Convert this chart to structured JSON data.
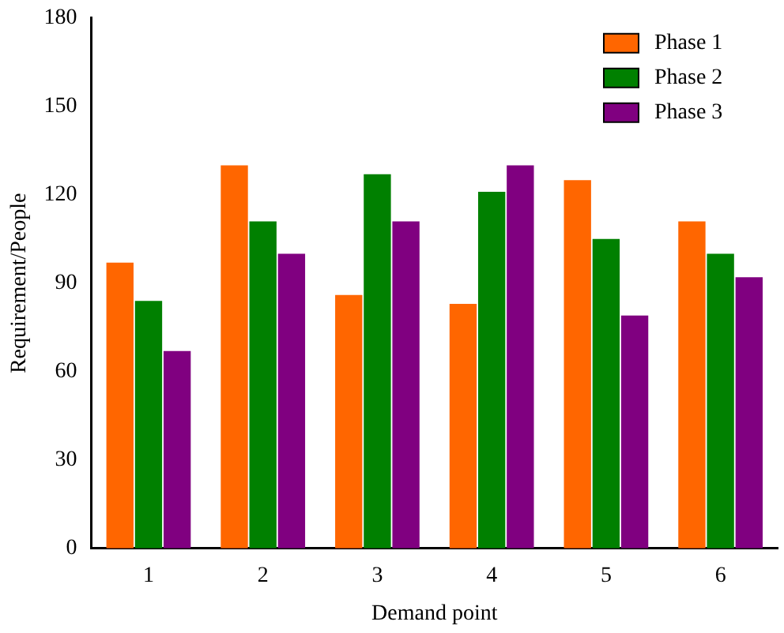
{
  "chart_data": {
    "type": "bar",
    "xlabel": "Demand point",
    "ylabel": "Requirement/People",
    "categories": [
      "1",
      "2",
      "3",
      "4",
      "5",
      "6"
    ],
    "series": [
      {
        "name": "Phase 1",
        "color": "#ff6600",
        "values": [
          97,
          130,
          86,
          83,
          125,
          111
        ]
      },
      {
        "name": "Phase 2",
        "color": "#008000",
        "values": [
          84,
          111,
          127,
          121,
          105,
          100
        ]
      },
      {
        "name": "Phase 3",
        "color": "#800080",
        "values": [
          67,
          100,
          111,
          130,
          79,
          92
        ]
      }
    ],
    "ylim": [
      0,
      180
    ],
    "yticks": [
      0,
      30,
      60,
      90,
      120,
      150,
      180
    ],
    "grid": false,
    "legend": "top right"
  }
}
